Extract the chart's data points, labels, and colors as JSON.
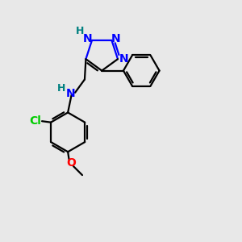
{
  "bg_color": "#e8e8e8",
  "atom_colors": {
    "N": "#0000ff",
    "H_teal": "#008080",
    "Cl": "#00cc00",
    "O": "#ff0000",
    "C": "#000000"
  },
  "figsize": [
    3.0,
    3.0
  ],
  "dpi": 100,
  "xlim": [
    0,
    10
  ],
  "ylim": [
    0,
    10
  ]
}
